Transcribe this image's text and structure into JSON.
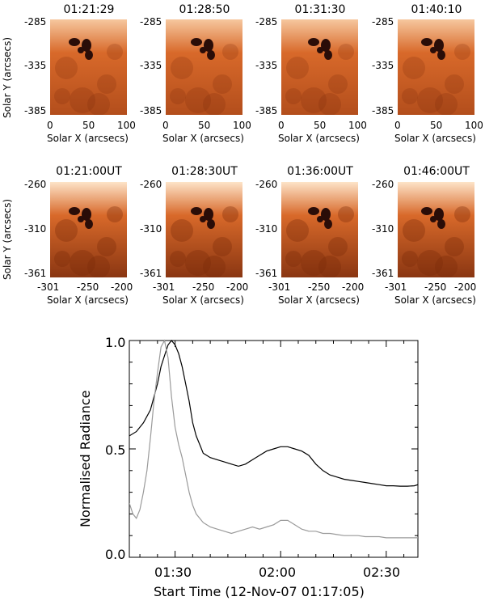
{
  "row1": {
    "titles": [
      "01:21:29",
      "01:28:50",
      "01:31:30",
      "01:40:10"
    ],
    "y_ticks": [
      "-285",
      "-335",
      "-385"
    ],
    "x_ticks": [
      "0",
      "50",
      "100"
    ],
    "ylabel": "Solar Y (arcsecs)",
    "xlabel": "Solar X (arcsecs)"
  },
  "row2": {
    "titles": [
      "01:21:00UT",
      "01:28:30UT",
      "01:36:00UT",
      "01:46:00UT"
    ],
    "y_ticks": [
      "-260",
      "-310",
      "-361"
    ],
    "x_ticks": [
      "-301",
      "-250",
      "-200"
    ],
    "ylabel": "Solar Y (arcsecs)",
    "xlabel": "Solar X (arcsecs)"
  },
  "colors": {
    "image_bright": "#f6c79e",
    "image_mid": "#d8692a",
    "image_dark": "#7a2a0a",
    "spot": "#2a0d08",
    "curve_black": "#000000",
    "curve_gray": "#9a9a9a"
  },
  "chart_data": {
    "type": "line",
    "title": "",
    "xlabel": "Start Time (12-Nov-07 01:17:05)",
    "ylabel": "Normalised Radiance",
    "x_unit": "minutes after 01:00",
    "xlim": [
      17,
      99
    ],
    "ylim": [
      0.0,
      1.0
    ],
    "x_tick_values": [
      30,
      60,
      90
    ],
    "x_tick_labels": [
      "01:30",
      "02:00",
      "02:30"
    ],
    "y_tick_values": [
      0.0,
      0.5,
      1.0
    ],
    "y_tick_labels": [
      "0.0",
      "0.5",
      "1.0"
    ],
    "series": [
      {
        "name": "black",
        "color": "#000000",
        "x": [
          17,
          19,
          21,
          23,
          25,
          26,
          27,
          28,
          29,
          30,
          31,
          32,
          33,
          34,
          35,
          36,
          37,
          38,
          40,
          42,
          44,
          46,
          48,
          50,
          52,
          54,
          56,
          58,
          60,
          62,
          64,
          66,
          68,
          70,
          72,
          74,
          76,
          78,
          80,
          82,
          84,
          86,
          88,
          90,
          92,
          94,
          96,
          98,
          99
        ],
        "y": [
          0.56,
          0.58,
          0.62,
          0.68,
          0.8,
          0.88,
          0.93,
          0.98,
          1.0,
          0.98,
          0.94,
          0.88,
          0.8,
          0.72,
          0.62,
          0.56,
          0.52,
          0.48,
          0.46,
          0.45,
          0.44,
          0.43,
          0.42,
          0.43,
          0.45,
          0.47,
          0.49,
          0.5,
          0.51,
          0.51,
          0.5,
          0.49,
          0.47,
          0.43,
          0.4,
          0.38,
          0.37,
          0.36,
          0.355,
          0.35,
          0.345,
          0.34,
          0.335,
          0.33,
          0.33,
          0.328,
          0.328,
          0.33,
          0.335
        ]
      },
      {
        "name": "gray",
        "color": "#9a9a9a",
        "x": [
          17,
          18,
          19,
          20,
          21,
          22,
          23,
          24,
          25,
          26,
          27,
          28,
          29,
          30,
          31,
          32,
          33,
          34,
          35,
          36,
          38,
          40,
          42,
          44,
          46,
          48,
          50,
          52,
          54,
          56,
          58,
          60,
          62,
          64,
          66,
          68,
          70,
          72,
          74,
          76,
          78,
          80,
          82,
          84,
          86,
          88,
          90,
          92,
          94,
          96,
          98,
          99
        ],
        "y": [
          0.25,
          0.2,
          0.18,
          0.22,
          0.3,
          0.4,
          0.55,
          0.72,
          0.85,
          0.97,
          1.0,
          0.92,
          0.74,
          0.6,
          0.52,
          0.46,
          0.38,
          0.3,
          0.24,
          0.2,
          0.16,
          0.14,
          0.13,
          0.12,
          0.11,
          0.12,
          0.13,
          0.14,
          0.13,
          0.14,
          0.15,
          0.17,
          0.17,
          0.15,
          0.13,
          0.12,
          0.12,
          0.11,
          0.11,
          0.105,
          0.1,
          0.1,
          0.1,
          0.095,
          0.095,
          0.095,
          0.09,
          0.09,
          0.09,
          0.09,
          0.09,
          0.09
        ]
      }
    ]
  }
}
